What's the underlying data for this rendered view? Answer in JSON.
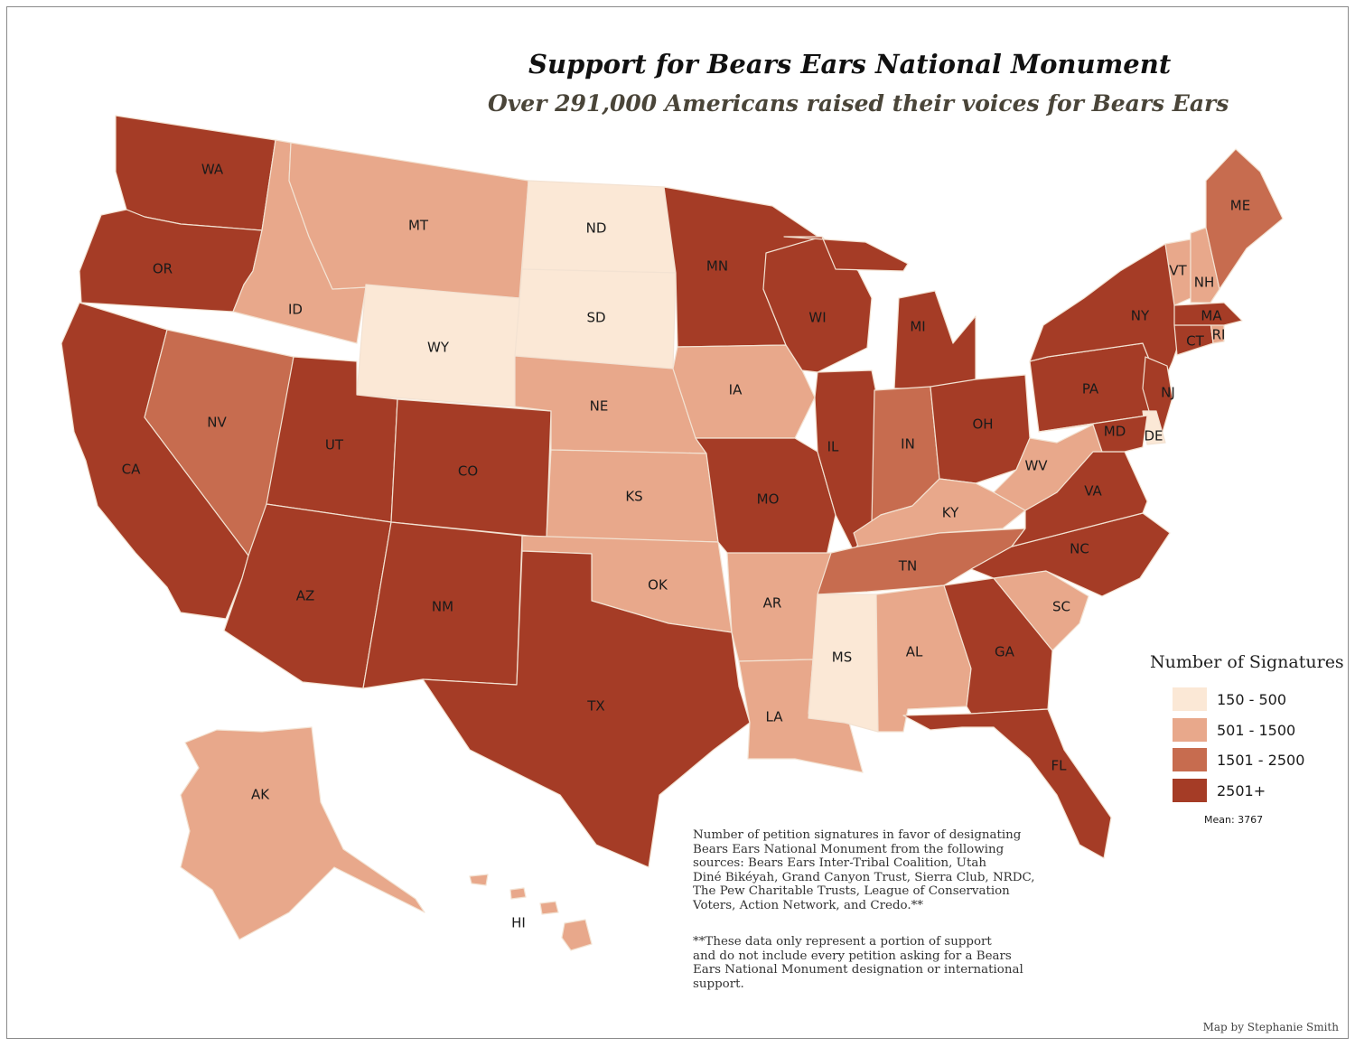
{
  "title": "Support for Bears Ears National Monument",
  "subtitle": "Over 291,000 Americans raised their voices for Bears Ears",
  "legend": {
    "title": "Number of Signatures",
    "bins": [
      {
        "label": "150 - 500",
        "color": "#fbe8d6"
      },
      {
        "label": "501 - 1500",
        "color": "#e8a88b"
      },
      {
        "label": "1501 - 2500",
        "color": "#c76c4f"
      },
      {
        "label": "2501+",
        "color": "#a53c26"
      }
    ],
    "mean": "Mean: 3767"
  },
  "note": {
    "paragraph1": "Number of petition signatures in favor of designating\nBears Ears National Monument from the following\nsources: Bears Ears Inter-Tribal Coalition, Utah\nDiné Bikéyah, Grand Canyon Trust, Sierra Club, NRDC,\nThe Pew Charitable Trusts, League of Conservation\nVoters, Action Network, and Credo.**",
    "paragraph2": "**These data only represent a portion of support\nand do not include every petition asking for a Bears\nEars National Monument designation or international\nsupport."
  },
  "credit": "Map by Stephanie Smith",
  "states": [
    {
      "abbr": "WA",
      "bin": 3
    },
    {
      "abbr": "OR",
      "bin": 3
    },
    {
      "abbr": "CA",
      "bin": 3
    },
    {
      "abbr": "NV",
      "bin": 2
    },
    {
      "abbr": "ID",
      "bin": 1
    },
    {
      "abbr": "MT",
      "bin": 1
    },
    {
      "abbr": "WY",
      "bin": 0
    },
    {
      "abbr": "UT",
      "bin": 3
    },
    {
      "abbr": "AZ",
      "bin": 3
    },
    {
      "abbr": "CO",
      "bin": 3
    },
    {
      "abbr": "NM",
      "bin": 3
    },
    {
      "abbr": "ND",
      "bin": 0
    },
    {
      "abbr": "SD",
      "bin": 0
    },
    {
      "abbr": "NE",
      "bin": 1
    },
    {
      "abbr": "KS",
      "bin": 1
    },
    {
      "abbr": "OK",
      "bin": 1
    },
    {
      "abbr": "TX",
      "bin": 3
    },
    {
      "abbr": "MN",
      "bin": 3
    },
    {
      "abbr": "IA",
      "bin": 1
    },
    {
      "abbr": "MO",
      "bin": 3
    },
    {
      "abbr": "AR",
      "bin": 1
    },
    {
      "abbr": "LA",
      "bin": 1
    },
    {
      "abbr": "WI",
      "bin": 3
    },
    {
      "abbr": "MI",
      "bin": 3
    },
    {
      "abbr": "IL",
      "bin": 3
    },
    {
      "abbr": "IN",
      "bin": 2
    },
    {
      "abbr": "OH",
      "bin": 3
    },
    {
      "abbr": "KY",
      "bin": 1
    },
    {
      "abbr": "TN",
      "bin": 2
    },
    {
      "abbr": "MS",
      "bin": 0
    },
    {
      "abbr": "AL",
      "bin": 1
    },
    {
      "abbr": "GA",
      "bin": 3
    },
    {
      "abbr": "FL",
      "bin": 3
    },
    {
      "abbr": "SC",
      "bin": 1
    },
    {
      "abbr": "NC",
      "bin": 3
    },
    {
      "abbr": "VA",
      "bin": 3
    },
    {
      "abbr": "WV",
      "bin": 1
    },
    {
      "abbr": "PA",
      "bin": 3
    },
    {
      "abbr": "NY",
      "bin": 3
    },
    {
      "abbr": "NJ",
      "bin": 3
    },
    {
      "abbr": "DE",
      "bin": 0
    },
    {
      "abbr": "MD",
      "bin": 3
    },
    {
      "abbr": "CT",
      "bin": 3
    },
    {
      "abbr": "RI",
      "bin": 1
    },
    {
      "abbr": "MA",
      "bin": 3
    },
    {
      "abbr": "VT",
      "bin": 1
    },
    {
      "abbr": "NH",
      "bin": 1
    },
    {
      "abbr": "ME",
      "bin": 2
    },
    {
      "abbr": "AK",
      "bin": 1
    },
    {
      "abbr": "HI",
      "bin": 1
    }
  ]
}
